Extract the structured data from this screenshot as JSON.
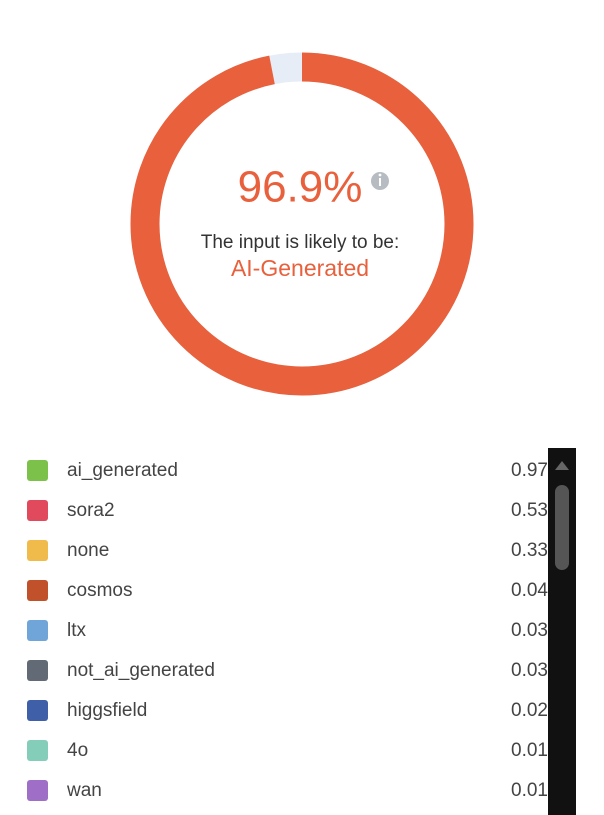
{
  "gauge": {
    "value": 96.9,
    "value_label": "96.9%",
    "caption": "The input is likely to be:",
    "verdict": "AI-Generated",
    "color": "#e8603c",
    "track_color": "#e6edf6"
  },
  "scores": [
    {
      "name": "ai_generated",
      "color": "#7cc24a",
      "value": 0.97
    },
    {
      "name": "sora2",
      "color": "#e04a5c",
      "value": 0.53
    },
    {
      "name": "none",
      "color": "#f0bb4a",
      "value": 0.33
    },
    {
      "name": "cosmos",
      "color": "#c0512a",
      "value": 0.04
    },
    {
      "name": "ltx",
      "color": "#6fa5d8",
      "value": 0.03
    },
    {
      "name": "not_ai_generated",
      "color": "#616a75",
      "value": 0.03
    },
    {
      "name": "higgsfield",
      "color": "#3f5fa8",
      "value": 0.02
    },
    {
      "name": "4o",
      "color": "#84cdb8",
      "value": 0.01
    },
    {
      "name": "wan",
      "color": "#9f6fc8",
      "value": 0.01
    }
  ]
}
